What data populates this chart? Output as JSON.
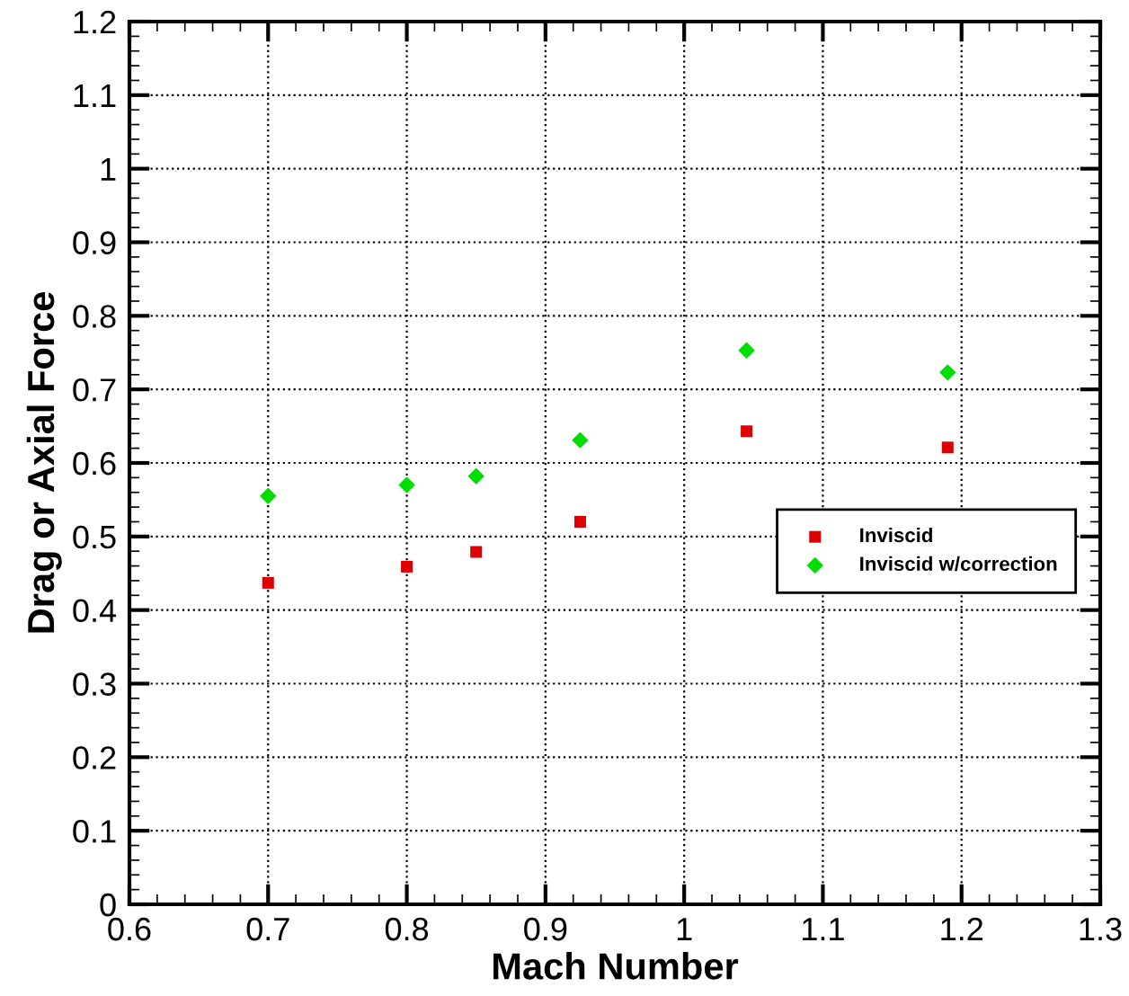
{
  "chart_data": {
    "type": "scatter",
    "xlabel": "Mach Number",
    "ylabel": "Drag or Axial Force",
    "x": [
      0.7,
      0.8,
      0.85,
      0.925,
      1.045,
      1.19
    ],
    "series": [
      {
        "name": "Inviscid",
        "color": "#dd0000",
        "marker": "square",
        "values": [
          0.437,
          0.459,
          0.479,
          0.52,
          0.643,
          0.621
        ]
      },
      {
        "name": "Inviscid w/correction",
        "color": "#00dd00",
        "marker": "diamond",
        "values": [
          0.555,
          0.57,
          0.582,
          0.631,
          0.753,
          0.723
        ]
      }
    ],
    "xlim": [
      0.6,
      1.3
    ],
    "xticks": [
      0.6,
      0.7,
      0.8,
      0.9,
      1,
      1.1,
      1.2,
      1.3
    ],
    "ylim": [
      0,
      1.2
    ],
    "yticks": [
      0,
      0.1,
      0.2,
      0.3,
      0.4,
      0.5,
      0.6,
      0.7,
      0.8,
      0.9,
      1,
      1.1,
      1.2
    ],
    "grid": true,
    "legend": "right"
  }
}
